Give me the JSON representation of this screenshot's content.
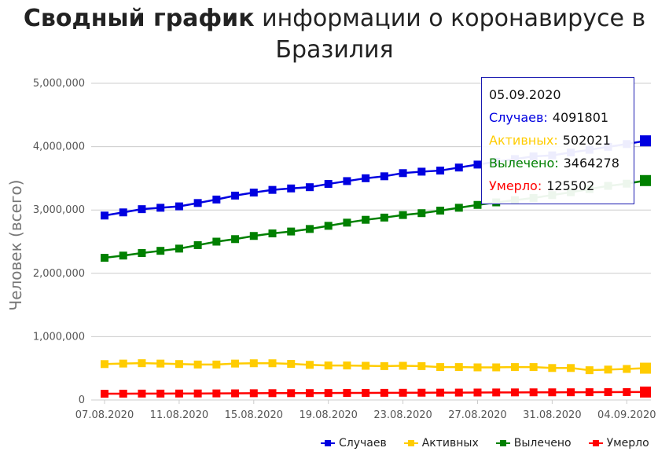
{
  "title_bold": "Сводный график",
  "title_rest": "информации о коронавирусе в Бразилия",
  "chart_data": {
    "type": "line",
    "ylabel": "Человек (всего)",
    "ylim": [
      0,
      5000000
    ],
    "y_ticks": [
      "0",
      "1,000,000",
      "2,000,000",
      "3,000,000",
      "4,000,000",
      "5,000,000"
    ],
    "y_tick_values": [
      0,
      1000000,
      2000000,
      3000000,
      4000000,
      5000000
    ],
    "x_tick_labels": [
      "07.08.2020",
      "11.08.2020",
      "15.08.2020",
      "19.08.2020",
      "23.08.2020",
      "27.08.2020",
      "31.08.2020",
      "04.09.2020"
    ],
    "x_tick_indices": [
      0,
      4,
      8,
      12,
      16,
      20,
      24,
      28
    ],
    "categories": [
      "07.08.2020",
      "08.08.2020",
      "09.08.2020",
      "10.08.2020",
      "11.08.2020",
      "12.08.2020",
      "13.08.2020",
      "14.08.2020",
      "15.08.2020",
      "16.08.2020",
      "17.08.2020",
      "18.08.2020",
      "19.08.2020",
      "20.08.2020",
      "21.08.2020",
      "22.08.2020",
      "23.08.2020",
      "24.08.2020",
      "25.08.2020",
      "26.08.2020",
      "27.08.2020",
      "28.08.2020",
      "29.08.2020",
      "30.08.2020",
      "31.08.2020",
      "01.09.2020",
      "02.09.2020",
      "03.09.2020",
      "04.09.2020",
      "05.09.2020"
    ],
    "grid": true,
    "legend_position": "bottom-right",
    "series": [
      {
        "name": "Случаев",
        "color": "#0000e0",
        "values": [
          2912000,
          2962000,
          3013000,
          3035000,
          3057000,
          3110000,
          3165000,
          3227000,
          3275000,
          3317000,
          3340000,
          3360000,
          3411000,
          3456000,
          3501000,
          3532000,
          3582000,
          3605000,
          3622000,
          3670000,
          3717000,
          3761000,
          3804000,
          3846000,
          3862000,
          3908000,
          3950000,
          3997000,
          4041000,
          4091801
        ]
      },
      {
        "name": "Активных",
        "color": "#ffcc00",
        "values": [
          567000,
          575000,
          581000,
          575000,
          568000,
          560000,
          560000,
          575000,
          580000,
          580000,
          570000,
          555000,
          545000,
          545000,
          540000,
          535000,
          540000,
          535000,
          520000,
          520000,
          515000,
          515000,
          520000,
          520000,
          505000,
          505000,
          470000,
          480000,
          490000,
          502021
        ]
      },
      {
        "name": "Вылечено",
        "color": "#008000",
        "values": [
          2245000,
          2280000,
          2320000,
          2355000,
          2390000,
          2445000,
          2500000,
          2540000,
          2590000,
          2630000,
          2660000,
          2700000,
          2750000,
          2800000,
          2845000,
          2880000,
          2920000,
          2950000,
          2990000,
          3035000,
          3080000,
          3120000,
          3155000,
          3190000,
          3235000,
          3280000,
          3330000,
          3380000,
          3415000,
          3464278
        ]
      },
      {
        "name": "Умерло",
        "color": "#ff0000",
        "values": [
          99000,
          100000,
          101000,
          101000,
          102000,
          103000,
          104000,
          105000,
          107000,
          108000,
          108000,
          109000,
          110000,
          111000,
          112000,
          113000,
          114000,
          115000,
          116000,
          117000,
          118000,
          119000,
          120000,
          121000,
          121000,
          122000,
          123000,
          124000,
          125000,
          125502
        ]
      }
    ]
  },
  "tooltip": {
    "date": "05.09.2020",
    "rows": [
      {
        "label": "Случаев:",
        "value": "4091801",
        "color": "#0000e0"
      },
      {
        "label": "Активных:",
        "value": "502021",
        "color": "#ffcc00"
      },
      {
        "label": "Вылечено:",
        "value": "3464278",
        "color": "#008000"
      },
      {
        "label": "Умерло:",
        "value": "125502",
        "color": "#ff0000"
      }
    ]
  },
  "legend": [
    {
      "label": "Случаев",
      "color": "#0000e0"
    },
    {
      "label": "Активных",
      "color": "#ffcc00"
    },
    {
      "label": "Вылечено",
      "color": "#008000"
    },
    {
      "label": "Умерло",
      "color": "#ff0000"
    }
  ]
}
